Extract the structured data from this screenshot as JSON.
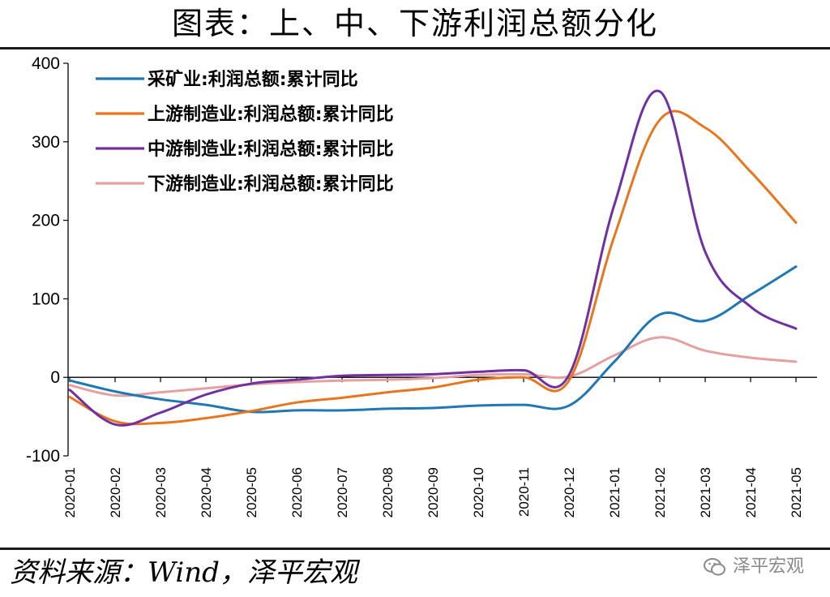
{
  "header": {
    "title": "图表：上、中、下游利润总额分化"
  },
  "footer": {
    "source": "资料来源：Wind，泽平宏观",
    "watermark": "泽平宏观",
    "watermark_icon": "wechat-icon"
  },
  "chart_data": {
    "type": "line",
    "title": "图表：上、中、下游利润总额分化",
    "xlabel": "",
    "ylabel": "",
    "ylim": [
      -100,
      400
    ],
    "yticks": [
      -100,
      0,
      100,
      200,
      300,
      400
    ],
    "grid": false,
    "legend_position": "top-left",
    "categories": [
      "2020-01",
      "2020-02",
      "2020-03",
      "2020-04",
      "2020-05",
      "2020-06",
      "2020-07",
      "2020-08",
      "2020-09",
      "2020-10",
      "2020-11",
      "2020-12",
      "2021-01",
      "2021-02",
      "2021-03",
      "2021-04",
      "2021-05"
    ],
    "series": [
      {
        "name": "采矿业:利润总额:累计同比",
        "color": "#1f77b4",
        "values": [
          -4,
          -18,
          -28,
          -35,
          -44,
          -42,
          -42,
          -40,
          -39,
          -36,
          -35,
          -36,
          20,
          80,
          72,
          105,
          141
        ]
      },
      {
        "name": "上游制造业:利润总额:累计同比",
        "color": "#e8761e",
        "values": [
          -25,
          -56,
          -58,
          -52,
          -43,
          -32,
          -26,
          -19,
          -13,
          -3,
          0,
          -4,
          180,
          328,
          318,
          262,
          197
        ]
      },
      {
        "name": "中游制造业:利润总额:累计同比",
        "color": "#7030a0",
        "values": [
          -16,
          -60,
          -45,
          -22,
          -8,
          -3,
          2,
          3,
          4,
          7,
          9,
          3,
          220,
          364,
          160,
          90,
          62
        ]
      },
      {
        "name": "下游制造业:利润总额:累计同比",
        "color": "#e6a0a0",
        "values": [
          -10,
          -23,
          -19,
          -14,
          -9,
          -6,
          -4,
          -3,
          -1,
          3,
          4,
          1,
          28,
          51,
          34,
          25,
          20
        ]
      }
    ]
  }
}
